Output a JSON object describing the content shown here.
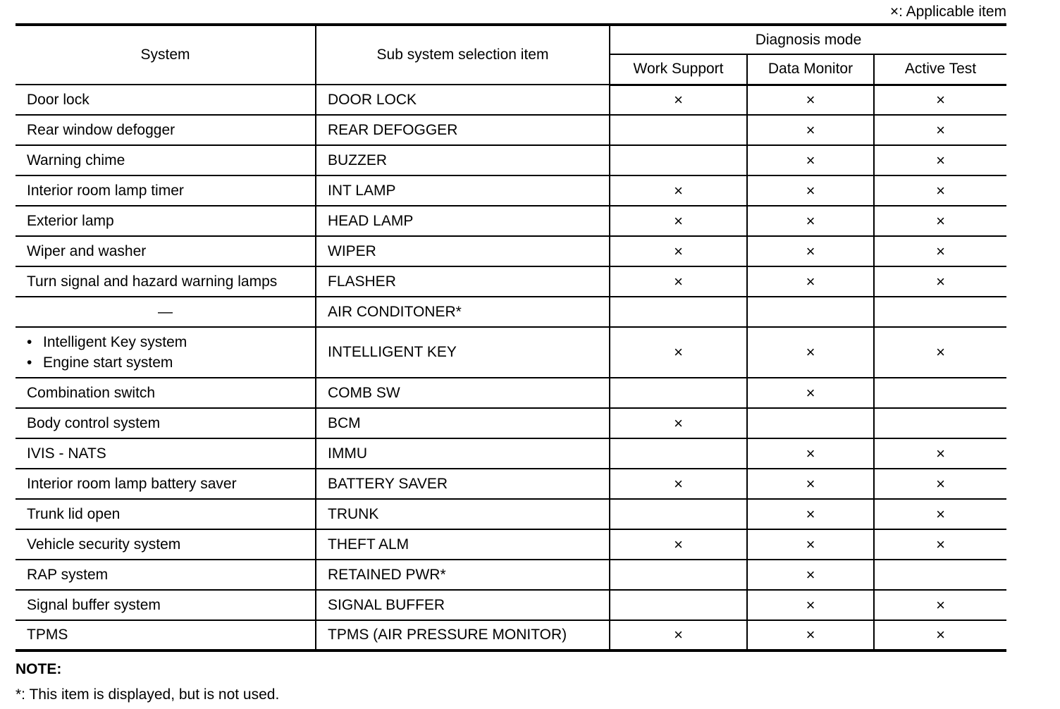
{
  "legend": "×: Applicable item",
  "mark": "×",
  "headers": {
    "system": "System",
    "sub_system": "Sub system selection item",
    "diagnosis_mode": "Diagnosis mode",
    "work_support": "Work Support",
    "data_monitor": "Data Monitor",
    "active_test": "Active Test"
  },
  "rows": [
    {
      "system": "Door lock",
      "sub": "DOOR LOCK",
      "ws": true,
      "dm": true,
      "at": true
    },
    {
      "system": "Rear window defogger",
      "sub": "REAR DEFOGGER",
      "ws": false,
      "dm": true,
      "at": true
    },
    {
      "system": "Warning chime",
      "sub": "BUZZER",
      "ws": false,
      "dm": true,
      "at": true
    },
    {
      "system": "Interior room lamp timer",
      "sub": "INT LAMP",
      "ws": true,
      "dm": true,
      "at": true
    },
    {
      "system": "Exterior lamp",
      "sub": "HEAD LAMP",
      "ws": true,
      "dm": true,
      "at": true
    },
    {
      "system": "Wiper and washer",
      "sub": "WIPER",
      "ws": true,
      "dm": true,
      "at": true
    },
    {
      "system": "Turn signal and hazard warning lamps",
      "sub": "FLASHER",
      "ws": true,
      "dm": true,
      "at": true
    },
    {
      "system": "—",
      "sub": "AIR CONDITONER*",
      "ws": false,
      "dm": false,
      "at": false,
      "center": true
    },
    {
      "system_list": [
        "Intelligent Key system",
        "Engine start system"
      ],
      "sub": "INTELLIGENT KEY",
      "ws": true,
      "dm": true,
      "at": true
    },
    {
      "system": "Combination switch",
      "sub": "COMB SW",
      "ws": false,
      "dm": true,
      "at": false
    },
    {
      "system": "Body control system",
      "sub": "BCM",
      "ws": true,
      "dm": false,
      "at": false
    },
    {
      "system": "IVIS - NATS",
      "sub": "IMMU",
      "ws": false,
      "dm": true,
      "at": true
    },
    {
      "system": "Interior room lamp battery saver",
      "sub": "BATTERY SAVER",
      "ws": true,
      "dm": true,
      "at": true
    },
    {
      "system": "Trunk lid open",
      "sub": "TRUNK",
      "ws": false,
      "dm": true,
      "at": true
    },
    {
      "system": "Vehicle security system",
      "sub": "THEFT ALM",
      "ws": true,
      "dm": true,
      "at": true
    },
    {
      "system": "RAP system",
      "sub": "RETAINED PWR*",
      "ws": false,
      "dm": true,
      "at": false
    },
    {
      "system": "Signal buffer system",
      "sub": "SIGNAL BUFFER",
      "ws": false,
      "dm": true,
      "at": true
    },
    {
      "system": "TPMS",
      "sub": "TPMS (AIR PRESSURE MONITOR)",
      "ws": true,
      "dm": true,
      "at": true
    }
  ],
  "note": {
    "title": "NOTE:",
    "text": "*: This item is displayed, but is not used."
  }
}
